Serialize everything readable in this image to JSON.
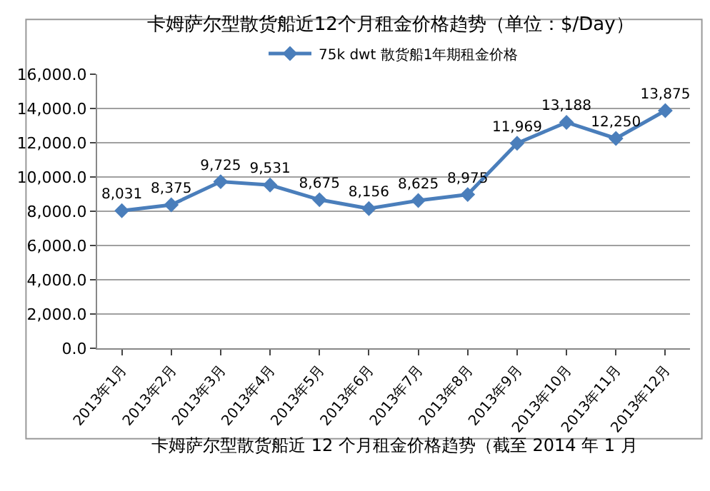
{
  "chart_data": {
    "type": "line",
    "title": "卡姆萨尔型散货船近12个月租金价格趋势（单位：$/Day）",
    "categories": [
      "2013年1月",
      "2013年2月",
      "2013年3月",
      "2013年4月",
      "2013年5月",
      "2013年6月",
      "2013年7月",
      "2013年8月",
      "2013年9月",
      "2013年10月",
      "2013年11月",
      "2013年12月"
    ],
    "series": [
      {
        "name": "75k dwt 散货船1年期租金价格",
        "color": "#4a7ebb",
        "values": [
          8031,
          8375,
          9725,
          9531,
          8675,
          8156,
          8625,
          8975,
          11969,
          13188,
          12250,
          13875
        ],
        "value_labels": [
          "8,031",
          "8,375",
          "9,725",
          "9,531",
          "8,675",
          "8,156",
          "8,625",
          "8,975",
          "11,969",
          "13,188",
          "12,250",
          "13,875"
        ]
      }
    ],
    "ylim": [
      0,
      16000
    ],
    "yticks": [
      {
        "value": 0,
        "label": "0.0"
      },
      {
        "value": 2000,
        "label": "2,000.0"
      },
      {
        "value": 4000,
        "label": "4,000.0"
      },
      {
        "value": 6000,
        "label": "6,000.0"
      },
      {
        "value": 8000,
        "label": "8,000.0"
      },
      {
        "value": 10000,
        "label": "10,000.0"
      },
      {
        "value": 12000,
        "label": "12,000.0"
      },
      {
        "value": 14000,
        "label": "14,000.0"
      },
      {
        "value": 16000,
        "label": "16,000.0"
      }
    ],
    "grid": "y",
    "legend": "top",
    "marker": "diamond",
    "line_style": "solid",
    "annotations": [
      "卡姆萨尔型散货船近 12 个月租金价格趋势（截至 2014 年 1 月"
    ]
  }
}
